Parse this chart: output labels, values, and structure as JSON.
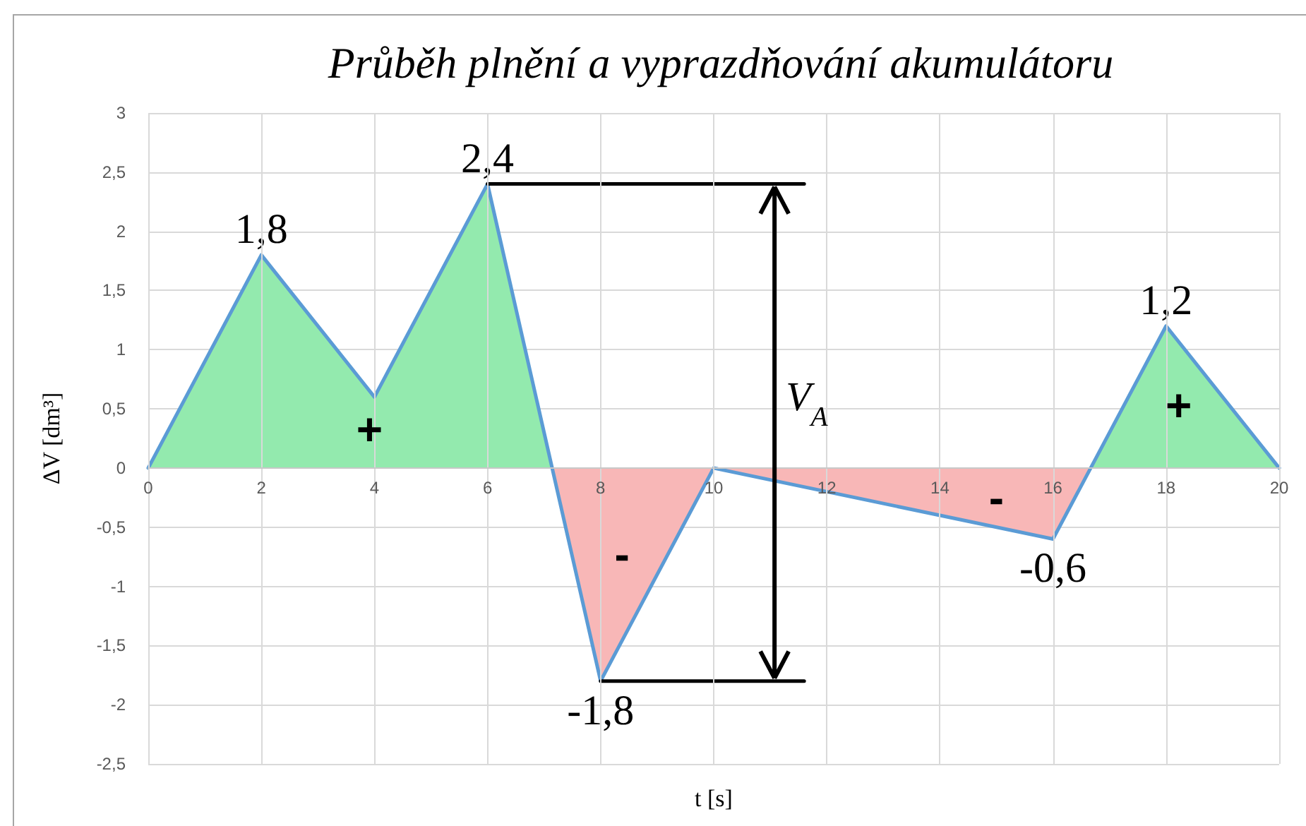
{
  "chart_data": {
    "type": "line",
    "title": "Průběh plnění a vyprazdňování akumulátoru",
    "xlabel": "t [s]",
    "ylabel": "ΔV [dm³]",
    "xlim": [
      0,
      20
    ],
    "xticks": [
      0,
      2,
      4,
      6,
      8,
      10,
      12,
      14,
      16,
      18,
      20
    ],
    "ylim": [
      -2.5,
      3
    ],
    "yticks": [
      {
        "value": -2.5,
        "label": "-2,5"
      },
      -2,
      {
        "value": -1.5,
        "label": "-1,5"
      },
      -1,
      {
        "value": -0.5,
        "label": "-0,5"
      },
      0,
      {
        "value": 0.5,
        "label": "0,5"
      },
      1,
      {
        "value": 1.5,
        "label": "1,5"
      },
      2,
      {
        "value": 2.5,
        "label": "2,5"
      },
      3
    ],
    "grid": true,
    "marker": "none",
    "line_style": "solid",
    "series": [
      {
        "type": "area",
        "color": "#93eaae",
        "x": [
          0,
          2,
          4,
          6,
          7.14
        ],
        "values": [
          0,
          1.8,
          0.6,
          2.4,
          0
        ]
      },
      {
        "type": "area",
        "color": "#f8b7b7",
        "x": [
          7.14,
          8,
          10
        ],
        "values": [
          0,
          -1.8,
          0
        ]
      },
      {
        "type": "area",
        "color": "#f8b7b7",
        "x": [
          10,
          16,
          16.67
        ],
        "values": [
          0,
          -0.6,
          0
        ]
      },
      {
        "type": "area",
        "color": "#93eaae",
        "x": [
          16.67,
          18,
          20
        ],
        "values": [
          0,
          1.2,
          0
        ]
      },
      {
        "color": "#5b9bd5",
        "x": [
          0,
          2,
          4,
          6,
          8,
          10,
          16,
          18,
          20
        ],
        "values": [
          0,
          1.8,
          0.6,
          2.4,
          -1.8,
          0,
          -0.6,
          1.2,
          0
        ],
        "value_labels": [
          null,
          "1,8",
          null,
          "2,4",
          "-1,8",
          null,
          "-0,6",
          "1,2",
          null
        ]
      },
      {
        "color": "#000000",
        "x": [
          6,
          11.6
        ],
        "values": [
          2.4,
          2.4
        ]
      },
      {
        "color": "#000000",
        "x": [
          8,
          11.6
        ],
        "values": [
          -1.8,
          -1.8
        ]
      }
    ],
    "annotations": [
      "+",
      "-",
      "-",
      "+",
      "V$_{A}$"
    ]
  }
}
